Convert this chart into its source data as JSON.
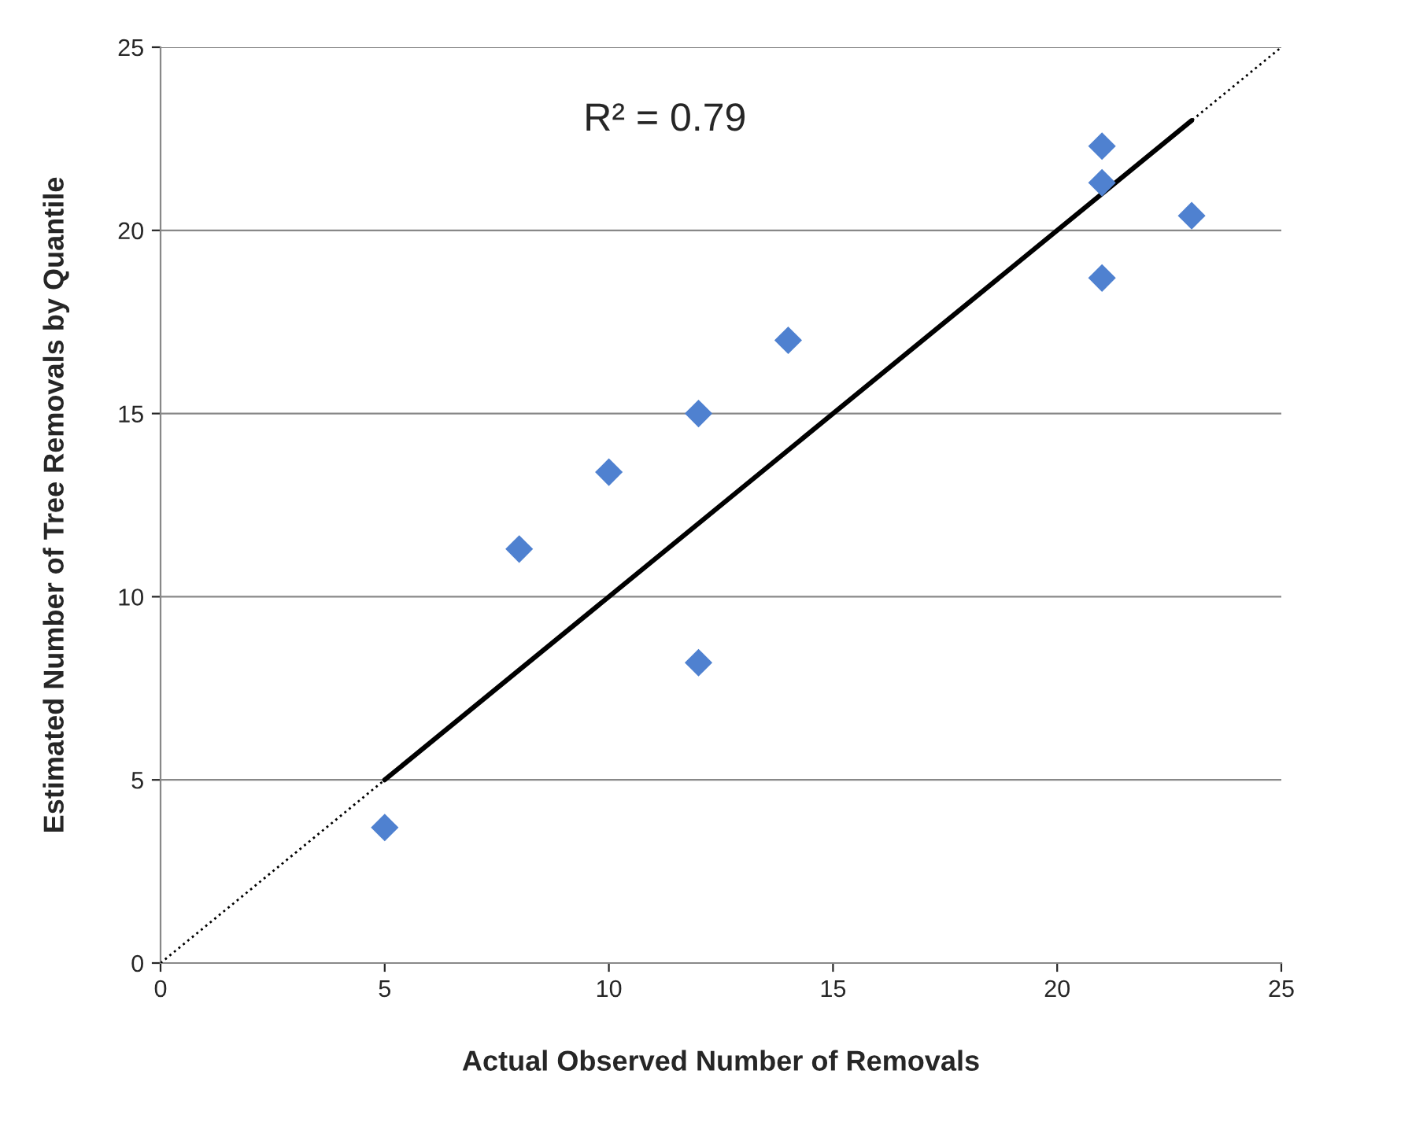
{
  "chart_data": {
    "type": "scatter",
    "xlabel": "Actual Observed Number of Removals",
    "ylabel": "Estimated Number of Tree Removals by Quantile",
    "series": [
      {
        "type": "line",
        "color": "#000000",
        "line_style": "dotted",
        "marker": "none",
        "x": [
          0,
          25
        ],
        "values": [
          0,
          25
        ]
      },
      {
        "type": "line",
        "color": "#000000",
        "line_style": "solid",
        "marker": "none",
        "x": [
          5,
          23
        ],
        "values": [
          5,
          23
        ]
      },
      {
        "color": "#4f81d0",
        "marker": "diamond",
        "x": [
          5,
          8,
          10,
          12,
          12,
          14,
          21,
          21,
          21,
          23
        ],
        "values": [
          3.7,
          11.3,
          13.4,
          15.0,
          8.2,
          17.0,
          22.3,
          21.3,
          18.7,
          20.4
        ]
      }
    ],
    "annotations": [
      "R² = 0.79"
    ],
    "xlim": [
      0,
      25
    ],
    "ylim": [
      0,
      25
    ],
    "xticks": [
      0,
      5,
      10,
      15,
      20,
      25
    ],
    "yticks": [
      0,
      5,
      10,
      15,
      20,
      25
    ],
    "grid": "y",
    "legend": false
  }
}
